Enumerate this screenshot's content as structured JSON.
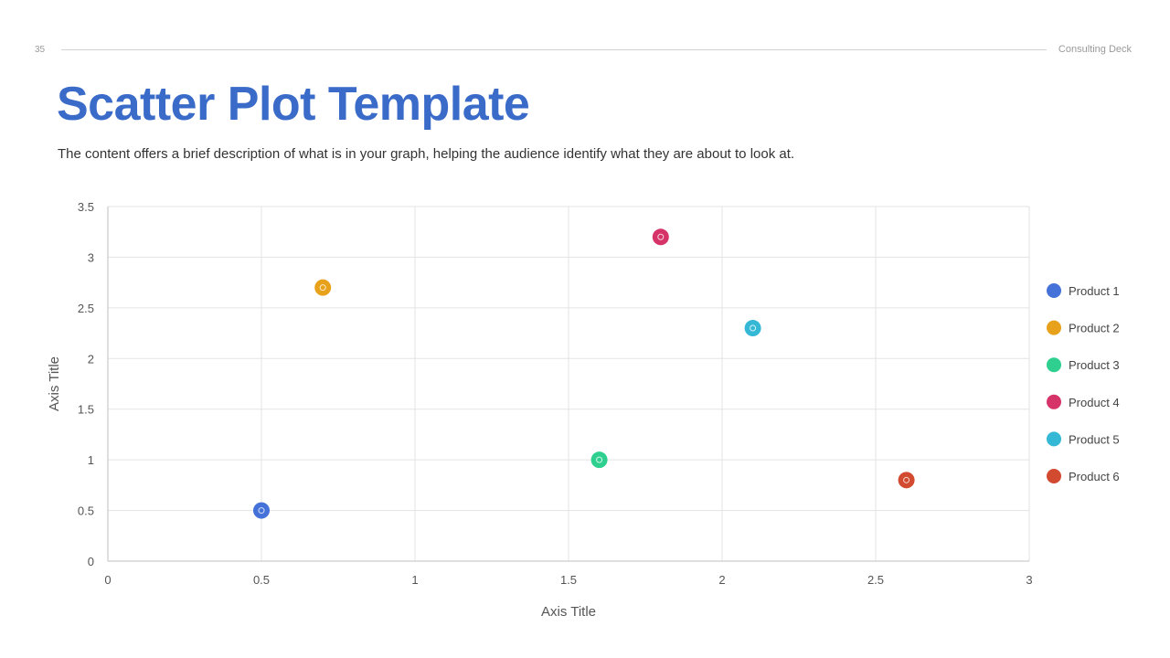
{
  "header": {
    "page_number": "35",
    "deck_name": "Consulting Deck"
  },
  "slide": {
    "title": "Scatter Plot Template",
    "subtitle": "The content offers a brief description of what is in your graph, helping the audience identify what they are about to look at."
  },
  "chart_data": {
    "type": "scatter",
    "title": "",
    "xlabel": "Axis Title",
    "ylabel": "Axis Title",
    "xlim": [
      0,
      3
    ],
    "ylim": [
      0,
      3.5
    ],
    "xticks": [
      "0",
      "0.5",
      "1",
      "1.5",
      "2",
      "2.5",
      "3"
    ],
    "yticks": [
      "0",
      "0.5",
      "1",
      "1.5",
      "2",
      "2.5",
      "3",
      "3.5"
    ],
    "grid": true,
    "legend_position": "right",
    "series": [
      {
        "name": "Product 1",
        "color": "#4472d8",
        "points": [
          {
            "x": 0.5,
            "y": 0.5
          }
        ]
      },
      {
        "name": "Product 2",
        "color": "#e8a11a",
        "points": [
          {
            "x": 0.7,
            "y": 2.7
          }
        ]
      },
      {
        "name": "Product 3",
        "color": "#2fcf8f",
        "points": [
          {
            "x": 1.6,
            "y": 1.0
          }
        ]
      },
      {
        "name": "Product 4",
        "color": "#d63369",
        "points": [
          {
            "x": 1.8,
            "y": 3.2
          }
        ]
      },
      {
        "name": "Product 5",
        "color": "#35b8d6",
        "points": [
          {
            "x": 2.1,
            "y": 2.3
          }
        ]
      },
      {
        "name": "Product 6",
        "color": "#d24a2f",
        "points": [
          {
            "x": 2.6,
            "y": 0.8
          }
        ]
      }
    ]
  }
}
